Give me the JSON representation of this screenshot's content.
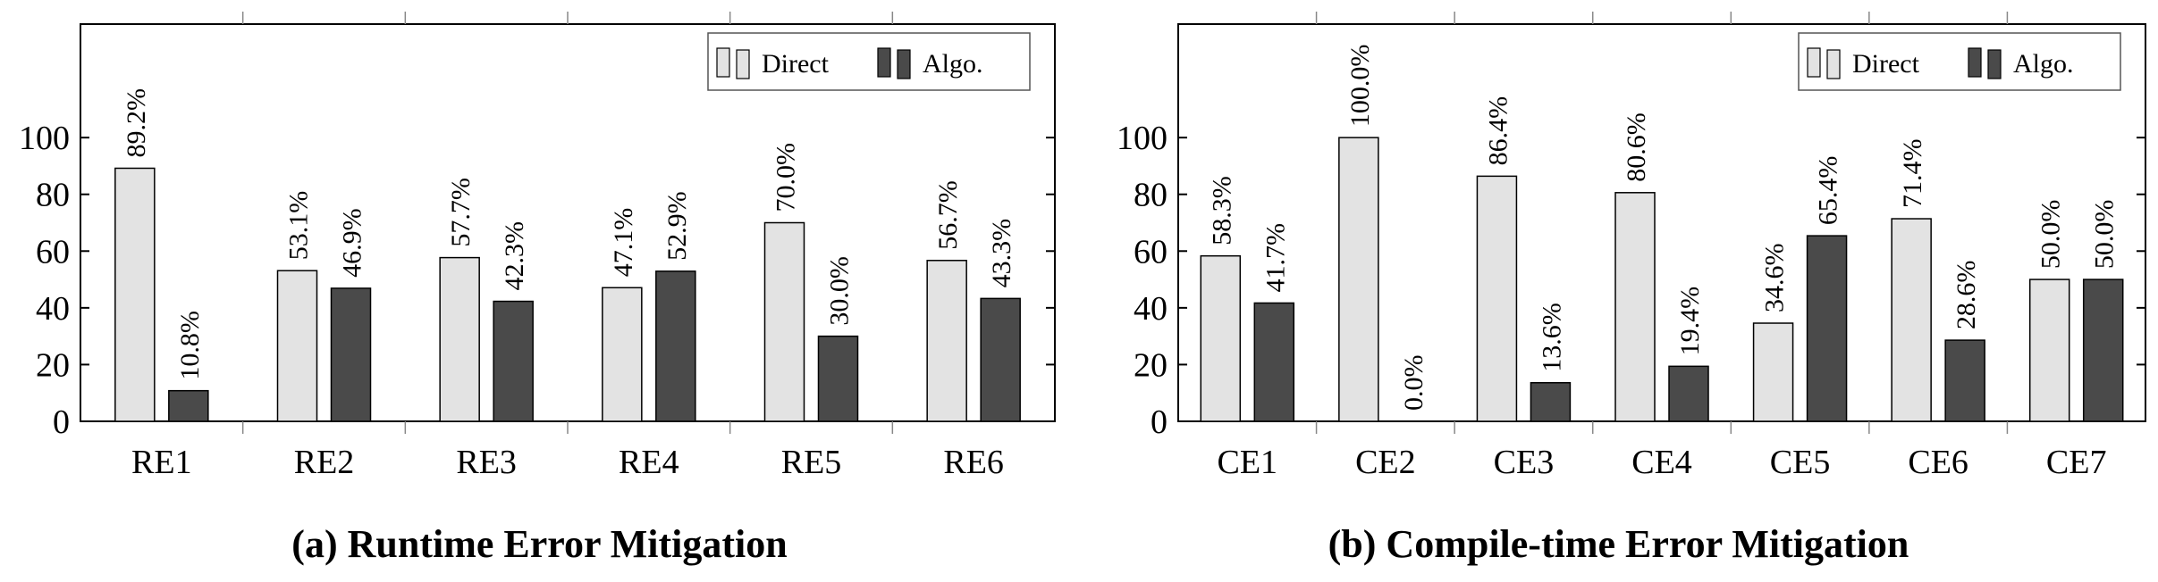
{
  "colors": {
    "direct": "#e3e3e3",
    "algo": "#4a4a4a",
    "stroke": "#000000"
  },
  "chart_data": [
    {
      "type": "bar",
      "caption": "(a) Runtime Error Mitigation",
      "categories": [
        "RE1",
        "RE2",
        "RE3",
        "RE4",
        "RE5",
        "RE6"
      ],
      "series": [
        {
          "name": "Direct",
          "values": [
            89.2,
            53.1,
            57.7,
            47.1,
            70.0,
            56.7
          ],
          "labels": [
            "89.2%",
            "53.1%",
            "57.7%",
            "47.1%",
            "70.0%",
            "56.7%"
          ]
        },
        {
          "name": "Algo.",
          "values": [
            10.8,
            46.9,
            42.3,
            52.9,
            30.0,
            43.3
          ],
          "labels": [
            "10.8%",
            "46.9%",
            "42.3%",
            "52.9%",
            "30.0%",
            "43.3%"
          ]
        }
      ],
      "yticks": [
        "0",
        "20",
        "40",
        "60",
        "80",
        "100"
      ],
      "ylim": [
        0,
        140
      ],
      "legend": "top-right",
      "grid": false
    },
    {
      "type": "bar",
      "caption": "(b) Compile-time Error Mitigation",
      "categories": [
        "CE1",
        "CE2",
        "CE3",
        "CE4",
        "CE5",
        "CE6",
        "CE7"
      ],
      "series": [
        {
          "name": "Direct",
          "values": [
            58.3,
            100.0,
            86.4,
            80.6,
            34.6,
            71.4,
            50.0
          ],
          "labels": [
            "58.3%",
            "100.0%",
            "86.4%",
            "80.6%",
            "34.6%",
            "71.4%",
            "50.0%"
          ]
        },
        {
          "name": "Algo.",
          "values": [
            41.7,
            0.0,
            13.6,
            19.4,
            65.4,
            28.6,
            50.0
          ],
          "labels": [
            "41.7%",
            "0.0%",
            "13.6%",
            "19.4%",
            "65.4%",
            "28.6%",
            "50.0%"
          ]
        }
      ],
      "yticks": [
        "0",
        "20",
        "40",
        "60",
        "80",
        "100"
      ],
      "ylim": [
        0,
        140
      ],
      "legend": "top-right",
      "grid": false
    }
  ]
}
